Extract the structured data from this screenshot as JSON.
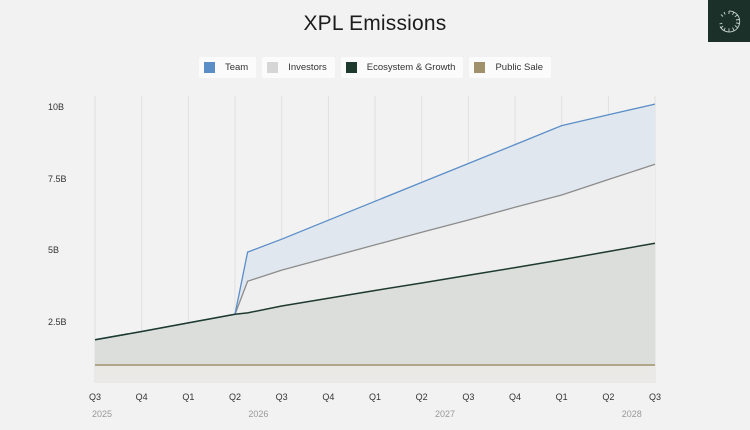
{
  "header": {
    "title": "XPL Emissions"
  },
  "logo": {
    "icon": "radial-arc-logo-icon",
    "bg": "#1a3029"
  },
  "legend": [
    {
      "label": "Team",
      "color": "#5b8ec7"
    },
    {
      "label": "Investors",
      "color": "#d6d6d6"
    },
    {
      "label": "Ecosystem & Growth",
      "color": "#1e3a2f"
    },
    {
      "label": "Public Sale",
      "color": "#a0906c"
    }
  ],
  "y_axis": {
    "ticks": [
      "10B",
      "7.5B",
      "5B",
      "2.5B"
    ]
  },
  "x_axis": {
    "quarters": [
      "Q3",
      "Q4",
      "Q1",
      "Q2",
      "Q3",
      "Q4",
      "Q1",
      "Q2",
      "Q3",
      "Q4",
      "Q1",
      "Q2",
      "Q3"
    ],
    "years": [
      {
        "label": "2025",
        "index": 0
      },
      {
        "label": "2026",
        "index": 3.5
      },
      {
        "label": "2027",
        "index": 7.5
      },
      {
        "label": "2028",
        "index": 11.5
      }
    ]
  },
  "chart_data": {
    "type": "area",
    "title": "XPL Emissions",
    "xlabel": "",
    "ylabel": "",
    "x": [
      "Q3 2025",
      "Q4 2025",
      "Q1 2026",
      "Q2 2026",
      "Q2+ 2026",
      "Q3 2026",
      "Q4 2026",
      "Q1 2027",
      "Q2 2027",
      "Q3 2027",
      "Q4 2027",
      "Q1 2028",
      "Q2 2028",
      "Q3 2028"
    ],
    "ylim": [
      0,
      10
    ],
    "y_unit": "B",
    "grid": "vertical",
    "legend_position": "top",
    "stacked": true,
    "series": [
      {
        "name": "Public Sale",
        "cumulative_values": [
          1.0,
          1.0,
          1.0,
          1.0,
          1.0,
          1.0,
          1.0,
          1.0,
          1.0,
          1.0,
          1.0,
          1.0,
          1.0,
          1.0
        ]
      },
      {
        "name": "Ecosystem & Growth",
        "cumulative_values": [
          1.88,
          2.17,
          2.47,
          2.77,
          2.82,
          3.06,
          3.33,
          3.6,
          3.86,
          4.13,
          4.4,
          4.67,
          4.96,
          5.25
        ]
      },
      {
        "name": "Investors",
        "cumulative_values": [
          1.88,
          2.17,
          2.47,
          2.77,
          3.92,
          4.31,
          4.75,
          5.19,
          5.63,
          6.06,
          6.5,
          6.93,
          7.47,
          8.0
        ]
      },
      {
        "name": "Team",
        "cumulative_values": [
          1.88,
          2.17,
          2.47,
          2.77,
          4.94,
          5.39,
          6.05,
          6.71,
          7.37,
          8.03,
          8.69,
          9.35,
          9.73,
          10.1
        ]
      }
    ]
  }
}
